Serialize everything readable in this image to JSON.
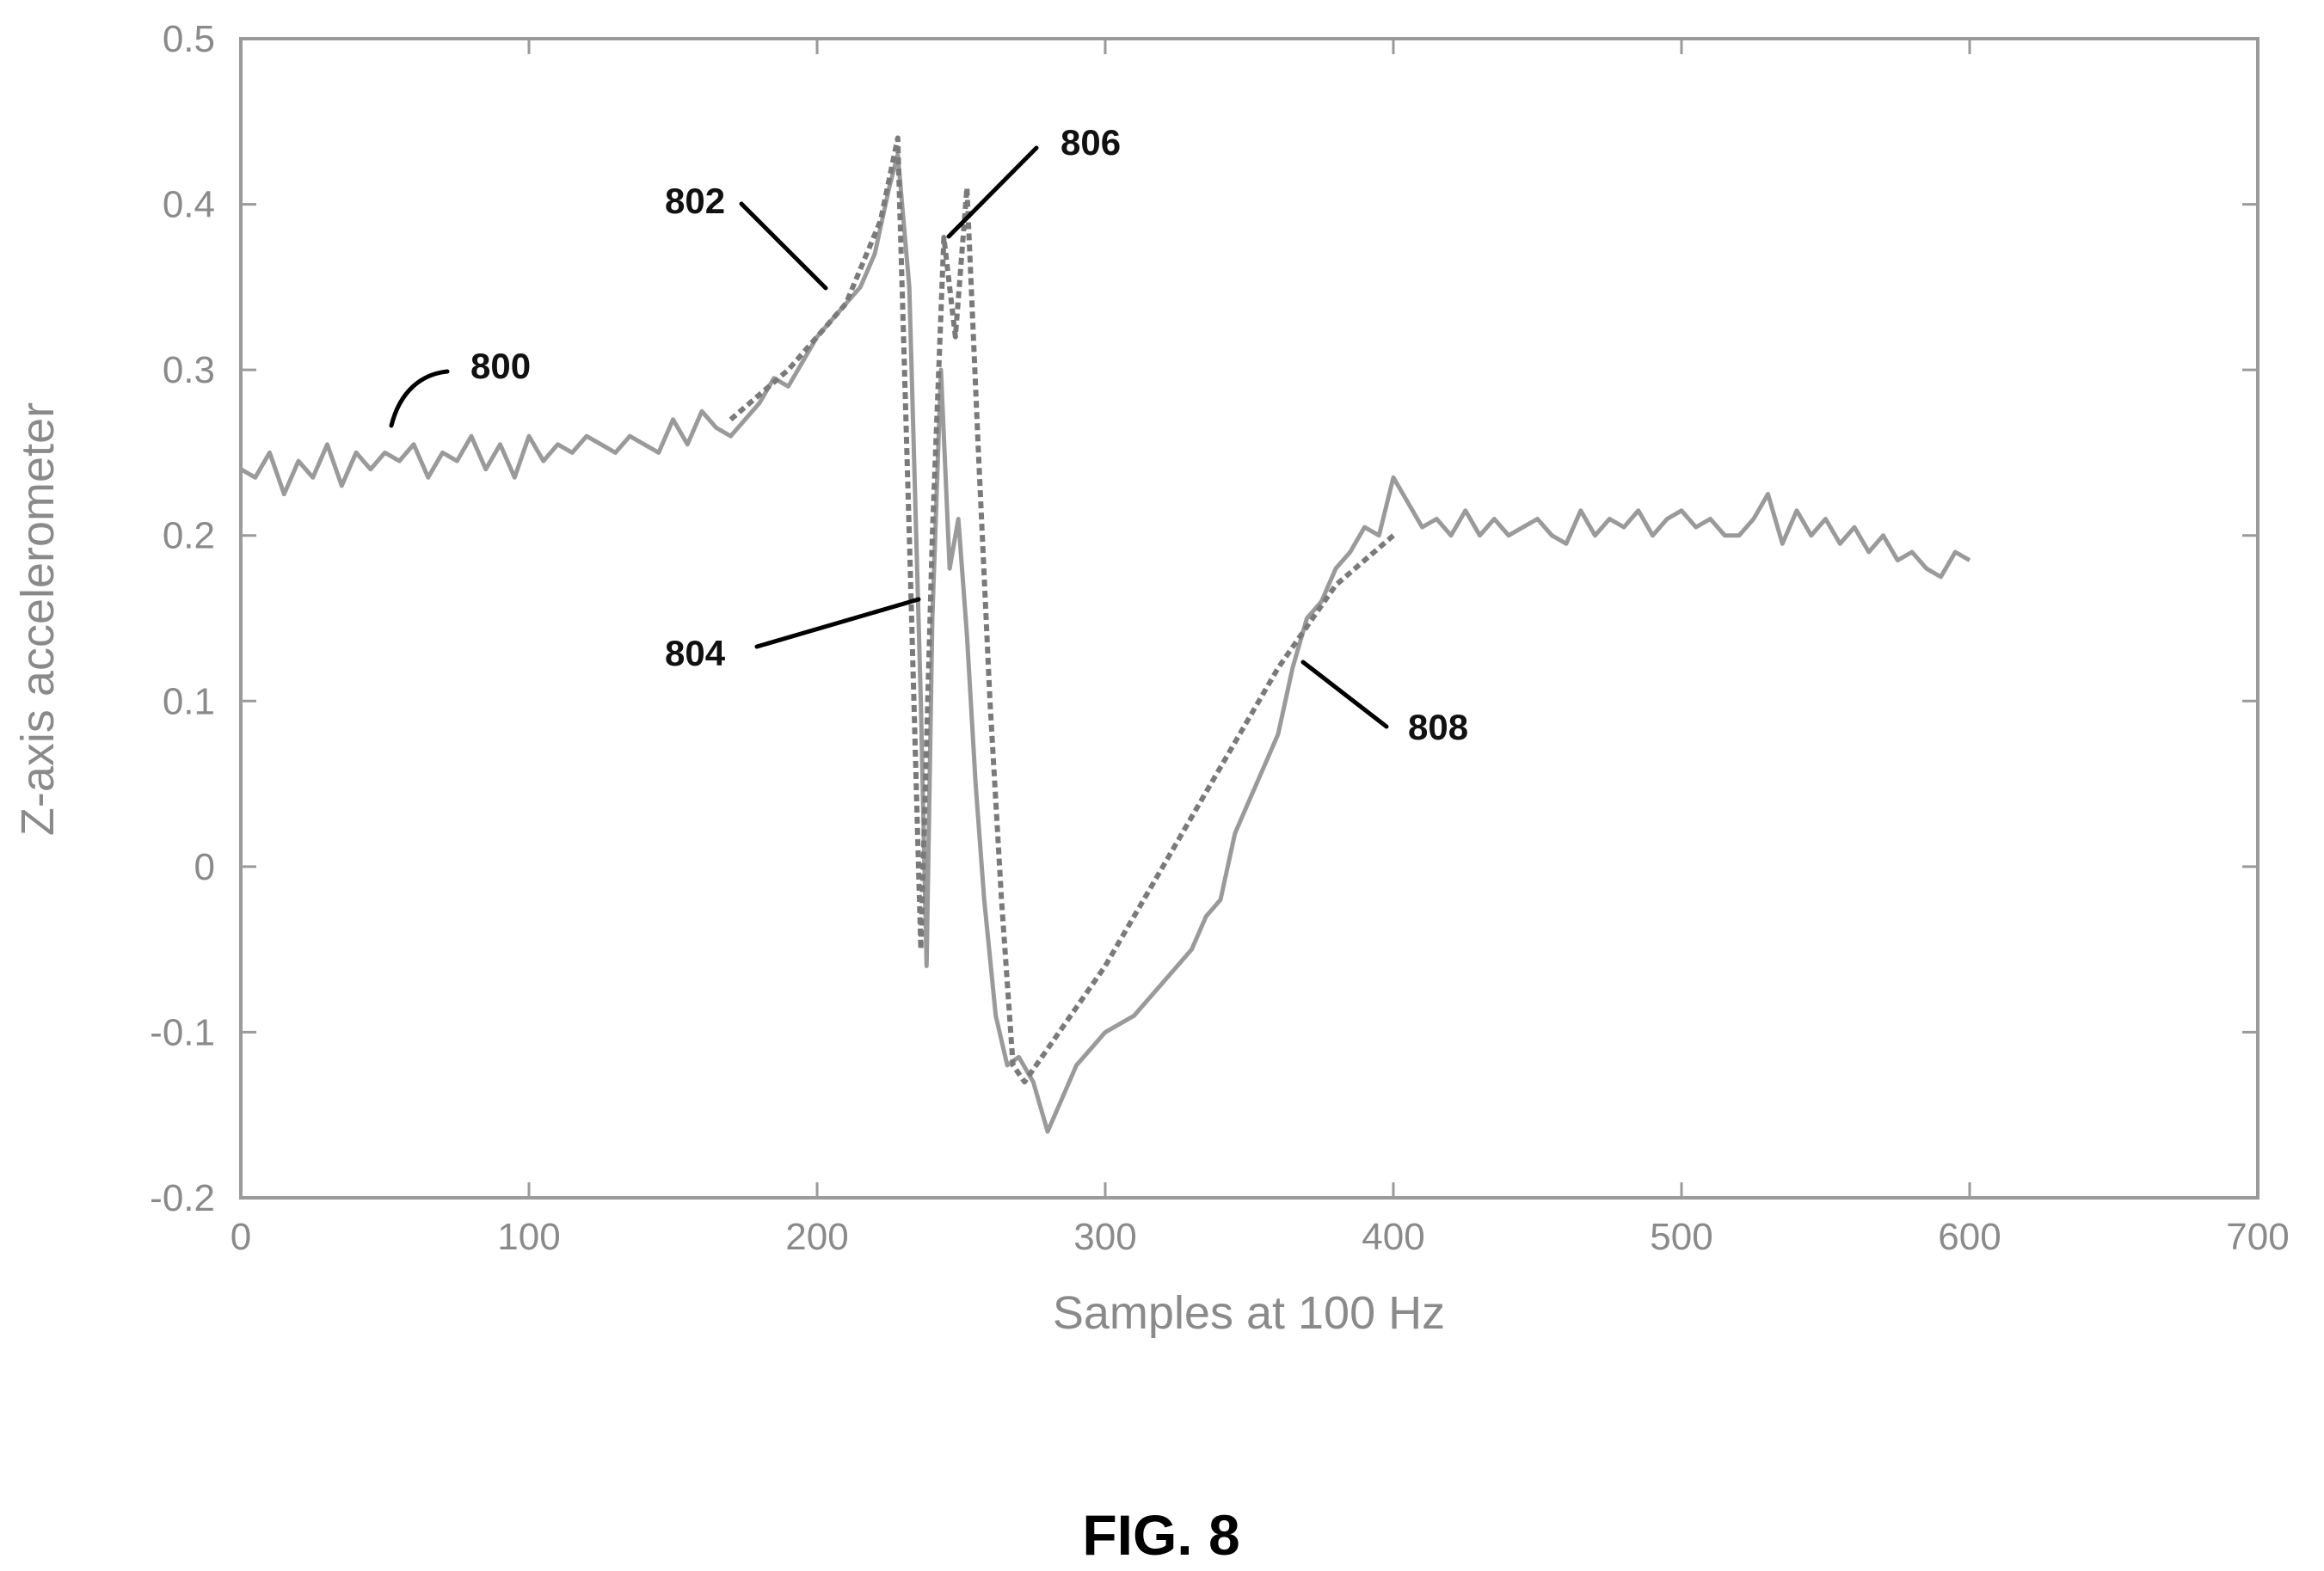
{
  "chart_data": {
    "type": "line",
    "title": "",
    "xlabel": "Samples at 100 Hz",
    "ylabel": "Z-axis accelerometer",
    "xlim": [
      0,
      700
    ],
    "ylim": [
      -0.2,
      0.5
    ],
    "x_ticks": [
      "0",
      "100",
      "200",
      "300",
      "400",
      "500",
      "600",
      "700"
    ],
    "y_ticks": [
      "-0.2",
      "-0.1",
      "0",
      "0.1",
      "0.2",
      "0.3",
      "0.4",
      "0.5"
    ],
    "x_tick_values": [
      0,
      100,
      200,
      300,
      400,
      500,
      600,
      700
    ],
    "y_tick_values": [
      -0.2,
      -0.1,
      0,
      0.1,
      0.2,
      0.3,
      0.4,
      0.5
    ],
    "grid": false,
    "series": [
      {
        "x": [
          0,
          5,
          10,
          15,
          20,
          25,
          30,
          35,
          40,
          45,
          50,
          55,
          60,
          65,
          70,
          75,
          80,
          85,
          90,
          95,
          100,
          105,
          110,
          115,
          120,
          125,
          130,
          135,
          140,
          145,
          150,
          155,
          160,
          165,
          170,
          175,
          180,
          185,
          190,
          195,
          200,
          205,
          210,
          215,
          220,
          225,
          228,
          232,
          236,
          238,
          240,
          243,
          246,
          249,
          252,
          255,
          258,
          262,
          266,
          270,
          275,
          280,
          285,
          290,
          295,
          300,
          305,
          310,
          315,
          320,
          325,
          330,
          335,
          340,
          345,
          350,
          355,
          360,
          365,
          370,
          375,
          380,
          385,
          390,
          395,
          400,
          405,
          410,
          415,
          420,
          425,
          430,
          435,
          440,
          445,
          450,
          455,
          460,
          465,
          470,
          475,
          480,
          485,
          490,
          495,
          500,
          505,
          510,
          515,
          520,
          525,
          530,
          535,
          540,
          545,
          550,
          555,
          560,
          565,
          570,
          575,
          580,
          585,
          590,
          595,
          600
        ],
        "y": [
          0.24,
          0.235,
          0.25,
          0.225,
          0.245,
          0.235,
          0.255,
          0.23,
          0.25,
          0.24,
          0.25,
          0.245,
          0.255,
          0.235,
          0.25,
          0.245,
          0.26,
          0.24,
          0.255,
          0.235,
          0.26,
          0.245,
          0.255,
          0.25,
          0.26,
          0.255,
          0.25,
          0.26,
          0.255,
          0.25,
          0.27,
          0.255,
          0.275,
          0.265,
          0.26,
          0.27,
          0.28,
          0.295,
          0.29,
          0.305,
          0.32,
          0.33,
          0.34,
          0.35,
          0.37,
          0.41,
          0.43,
          0.35,
          0.1,
          -0.06,
          0.15,
          0.3,
          0.18,
          0.21,
          0.14,
          0.05,
          -0.02,
          -0.09,
          -0.12,
          -0.115,
          -0.13,
          -0.16,
          -0.14,
          -0.12,
          -0.11,
          -0.1,
          -0.095,
          -0.09,
          -0.08,
          -0.07,
          -0.06,
          -0.05,
          -0.03,
          -0.02,
          0.02,
          0.04,
          0.06,
          0.08,
          0.12,
          0.15,
          0.16,
          0.18,
          0.19,
          0.205,
          0.2,
          0.235,
          0.22,
          0.205,
          0.21,
          0.2,
          0.215,
          0.2,
          0.21,
          0.2,
          0.205,
          0.21,
          0.2,
          0.195,
          0.215,
          0.2,
          0.21,
          0.205,
          0.215,
          0.2,
          0.21,
          0.215,
          0.205,
          0.21,
          0.2,
          0.2,
          0.21,
          0.225,
          0.195,
          0.215,
          0.2,
          0.21,
          0.195,
          0.205,
          0.19,
          0.2,
          0.185,
          0.19,
          0.18,
          0.175,
          0.19,
          0.185
        ]
      },
      {
        "x": [
          170,
          190,
          210,
          222,
          228,
          232,
          236,
          240,
          244,
          248,
          252,
          256,
          260,
          264,
          268,
          272,
          276,
          280,
          300,
          320,
          340,
          360,
          380,
          400
        ],
        "y": [
          0.27,
          0.3,
          0.34,
          0.39,
          0.44,
          0.2,
          -0.05,
          0.2,
          0.38,
          0.32,
          0.41,
          0.25,
          0.1,
          -0.02,
          -0.12,
          -0.13,
          -0.12,
          -0.11,
          -0.06,
          0.0,
          0.06,
          0.12,
          0.17,
          0.2
        ]
      }
    ],
    "annotations": [
      "800",
      "802",
      "804",
      "806",
      "808"
    ]
  },
  "figure": {
    "caption": "FIG. 8"
  }
}
